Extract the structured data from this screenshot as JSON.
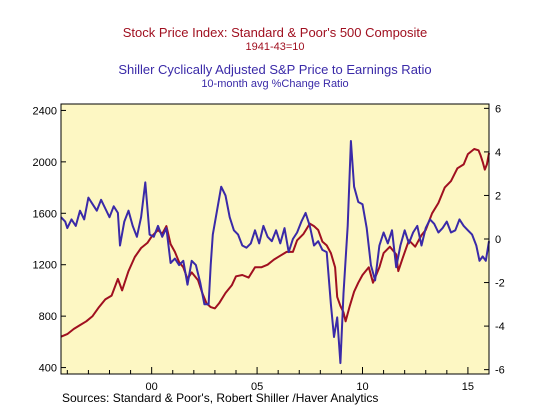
{
  "chart_data": {
    "type": "line",
    "title_left": "Stock Price Index: Standard & Poor's 500 Composite",
    "subtitle_left": "1941-43=10",
    "title_right": "Shiller Cyclically Adjusted S&P Price to Earnings Ratio",
    "subtitle_right": "10-month avg %Change Ratio",
    "source": "Sources:  Standard & Poor's, Robert Shiller /Haver Analytics",
    "plot_background": "#fdf7c3",
    "x_ticks": [
      {
        "value": 2000,
        "label": "00"
      },
      {
        "value": 2005,
        "label": "05"
      },
      {
        "value": 2010,
        "label": "10"
      },
      {
        "value": 2015,
        "label": "15"
      }
    ],
    "xlim": [
      1995.7,
      2016.0
    ],
    "left_axis": {
      "ylim": [
        350,
        2450
      ],
      "ticks": [
        400,
        800,
        1200,
        1600,
        2000,
        2400
      ]
    },
    "right_axis": {
      "ylim": [
        -6.2,
        6.2
      ],
      "ticks": [
        -6,
        -4,
        -2,
        0,
        2,
        4,
        6
      ]
    },
    "series": [
      {
        "axis": "left",
        "color": "#a01020",
        "points": [
          [
            1995.7,
            640
          ],
          [
            1996.0,
            660
          ],
          [
            1996.3,
            700
          ],
          [
            1996.6,
            730
          ],
          [
            1996.9,
            760
          ],
          [
            1997.2,
            800
          ],
          [
            1997.5,
            870
          ],
          [
            1997.8,
            930
          ],
          [
            1998.1,
            960
          ],
          [
            1998.4,
            1090
          ],
          [
            1998.6,
            1000
          ],
          [
            1998.9,
            1150
          ],
          [
            1999.2,
            1260
          ],
          [
            1999.5,
            1330
          ],
          [
            1999.8,
            1370
          ],
          [
            2000.0,
            1420
          ],
          [
            2000.3,
            1470
          ],
          [
            2000.5,
            1440
          ],
          [
            2000.7,
            1500
          ],
          [
            2000.9,
            1360
          ],
          [
            2001.1,
            1300
          ],
          [
            2001.3,
            1220
          ],
          [
            2001.5,
            1180
          ],
          [
            2001.7,
            1090
          ],
          [
            2001.9,
            1140
          ],
          [
            2002.2,
            1080
          ],
          [
            2002.4,
            980
          ],
          [
            2002.6,
            900
          ],
          [
            2002.8,
            870
          ],
          [
            2003.0,
            860
          ],
          [
            2003.2,
            900
          ],
          [
            2003.5,
            980
          ],
          [
            2003.8,
            1040
          ],
          [
            2004.0,
            1110
          ],
          [
            2004.3,
            1120
          ],
          [
            2004.6,
            1100
          ],
          [
            2004.9,
            1180
          ],
          [
            2005.2,
            1180
          ],
          [
            2005.5,
            1200
          ],
          [
            2005.8,
            1240
          ],
          [
            2006.1,
            1270
          ],
          [
            2006.4,
            1300
          ],
          [
            2006.7,
            1300
          ],
          [
            2006.9,
            1390
          ],
          [
            2007.2,
            1440
          ],
          [
            2007.5,
            1520
          ],
          [
            2007.7,
            1500
          ],
          [
            2007.9,
            1470
          ],
          [
            2008.1,
            1380
          ],
          [
            2008.3,
            1350
          ],
          [
            2008.5,
            1290
          ],
          [
            2008.7,
            1180
          ],
          [
            2008.8,
            950
          ],
          [
            2008.95,
            880
          ],
          [
            2009.1,
            830
          ],
          [
            2009.2,
            760
          ],
          [
            2009.4,
            880
          ],
          [
            2009.6,
            990
          ],
          [
            2009.8,
            1060
          ],
          [
            2010.0,
            1120
          ],
          [
            2010.3,
            1180
          ],
          [
            2010.5,
            1060
          ],
          [
            2010.8,
            1180
          ],
          [
            2011.0,
            1290
          ],
          [
            2011.3,
            1340
          ],
          [
            2011.6,
            1280
          ],
          [
            2011.7,
            1150
          ],
          [
            2011.9,
            1250
          ],
          [
            2012.2,
            1390
          ],
          [
            2012.5,
            1340
          ],
          [
            2012.8,
            1430
          ],
          [
            2013.0,
            1470
          ],
          [
            2013.3,
            1600
          ],
          [
            2013.6,
            1680
          ],
          [
            2013.9,
            1800
          ],
          [
            2014.2,
            1850
          ],
          [
            2014.5,
            1950
          ],
          [
            2014.8,
            1980
          ],
          [
            2015.0,
            2060
          ],
          [
            2015.3,
            2100
          ],
          [
            2015.5,
            2090
          ],
          [
            2015.6,
            2050
          ],
          [
            2015.7,
            2000
          ],
          [
            2015.8,
            1940
          ],
          [
            2015.9,
            1980
          ],
          [
            2016.0,
            2070
          ]
        ]
      },
      {
        "axis": "right",
        "color": "#3a2aa8",
        "points": [
          [
            1995.7,
            1.0
          ],
          [
            1995.9,
            0.8
          ],
          [
            1996.0,
            0.5
          ],
          [
            1996.2,
            0.9
          ],
          [
            1996.4,
            0.6
          ],
          [
            1996.6,
            1.3
          ],
          [
            1996.8,
            0.9
          ],
          [
            1997.0,
            1.9
          ],
          [
            1997.2,
            1.6
          ],
          [
            1997.4,
            1.3
          ],
          [
            1997.6,
            1.8
          ],
          [
            1997.8,
            1.4
          ],
          [
            1998.0,
            1.0
          ],
          [
            1998.2,
            1.5
          ],
          [
            1998.4,
            1.2
          ],
          [
            1998.5,
            -0.3
          ],
          [
            1998.7,
            0.8
          ],
          [
            1998.9,
            1.3
          ],
          [
            1999.1,
            0.6
          ],
          [
            1999.3,
            0.1
          ],
          [
            1999.5,
            1.0
          ],
          [
            1999.7,
            2.6
          ],
          [
            1999.9,
            0.2
          ],
          [
            2000.1,
            0.1
          ],
          [
            2000.3,
            0.6
          ],
          [
            2000.5,
            0.1
          ],
          [
            2000.7,
            0.5
          ],
          [
            2000.9,
            -1.1
          ],
          [
            2001.1,
            -0.9
          ],
          [
            2001.3,
            -1.2
          ],
          [
            2001.5,
            -1.0
          ],
          [
            2001.7,
            -2.1
          ],
          [
            2001.9,
            -1.0
          ],
          [
            2002.1,
            -1.2
          ],
          [
            2002.3,
            -2.0
          ],
          [
            2002.5,
            -3.0
          ],
          [
            2002.7,
            -3.0
          ],
          [
            2002.8,
            -1.2
          ],
          [
            2002.9,
            0.2
          ],
          [
            2003.1,
            1.3
          ],
          [
            2003.3,
            2.4
          ],
          [
            2003.5,
            2.0
          ],
          [
            2003.7,
            1.0
          ],
          [
            2003.9,
            0.4
          ],
          [
            2004.1,
            0.2
          ],
          [
            2004.3,
            -0.3
          ],
          [
            2004.5,
            -0.4
          ],
          [
            2004.7,
            -0.2
          ],
          [
            2004.9,
            0.4
          ],
          [
            2005.1,
            -0.2
          ],
          [
            2005.3,
            0.6
          ],
          [
            2005.5,
            0.1
          ],
          [
            2005.7,
            -0.1
          ],
          [
            2005.9,
            0.4
          ],
          [
            2006.1,
            -0.2
          ],
          [
            2006.3,
            0.5
          ],
          [
            2006.5,
            -0.6
          ],
          [
            2006.7,
            0.0
          ],
          [
            2006.9,
            0.3
          ],
          [
            2007.1,
            0.8
          ],
          [
            2007.3,
            1.2
          ],
          [
            2007.5,
            0.6
          ],
          [
            2007.7,
            -0.3
          ],
          [
            2007.9,
            -0.1
          ],
          [
            2008.1,
            -0.5
          ],
          [
            2008.3,
            -0.6
          ],
          [
            2008.5,
            -3.0
          ],
          [
            2008.65,
            -4.5
          ],
          [
            2008.8,
            -3.6
          ],
          [
            2008.95,
            -5.7
          ],
          [
            2009.1,
            -2.5
          ],
          [
            2009.3,
            0.6
          ],
          [
            2009.45,
            4.5
          ],
          [
            2009.6,
            2.4
          ],
          [
            2009.8,
            1.7
          ],
          [
            2010.0,
            1.6
          ],
          [
            2010.2,
            0.5
          ],
          [
            2010.4,
            -1.2
          ],
          [
            2010.6,
            -1.9
          ],
          [
            2010.8,
            -0.3
          ],
          [
            2011.0,
            0.3
          ],
          [
            2011.2,
            -0.2
          ],
          [
            2011.4,
            0.4
          ],
          [
            2011.6,
            -1.3
          ],
          [
            2011.8,
            -0.3
          ],
          [
            2012.0,
            0.4
          ],
          [
            2012.2,
            -0.2
          ],
          [
            2012.4,
            0.3
          ],
          [
            2012.6,
            0.6
          ],
          [
            2012.8,
            -0.3
          ],
          [
            2013.0,
            0.5
          ],
          [
            2013.2,
            0.9
          ],
          [
            2013.4,
            0.7
          ],
          [
            2013.6,
            0.3
          ],
          [
            2013.8,
            0.5
          ],
          [
            2014.0,
            0.8
          ],
          [
            2014.2,
            0.3
          ],
          [
            2014.4,
            0.4
          ],
          [
            2014.6,
            0.9
          ],
          [
            2014.8,
            0.6
          ],
          [
            2015.0,
            0.4
          ],
          [
            2015.2,
            0.2
          ],
          [
            2015.4,
            -0.3
          ],
          [
            2015.55,
            -1.0
          ],
          [
            2015.7,
            -0.8
          ],
          [
            2015.85,
            -1.0
          ],
          [
            2016.0,
            -0.1
          ]
        ]
      }
    ]
  }
}
